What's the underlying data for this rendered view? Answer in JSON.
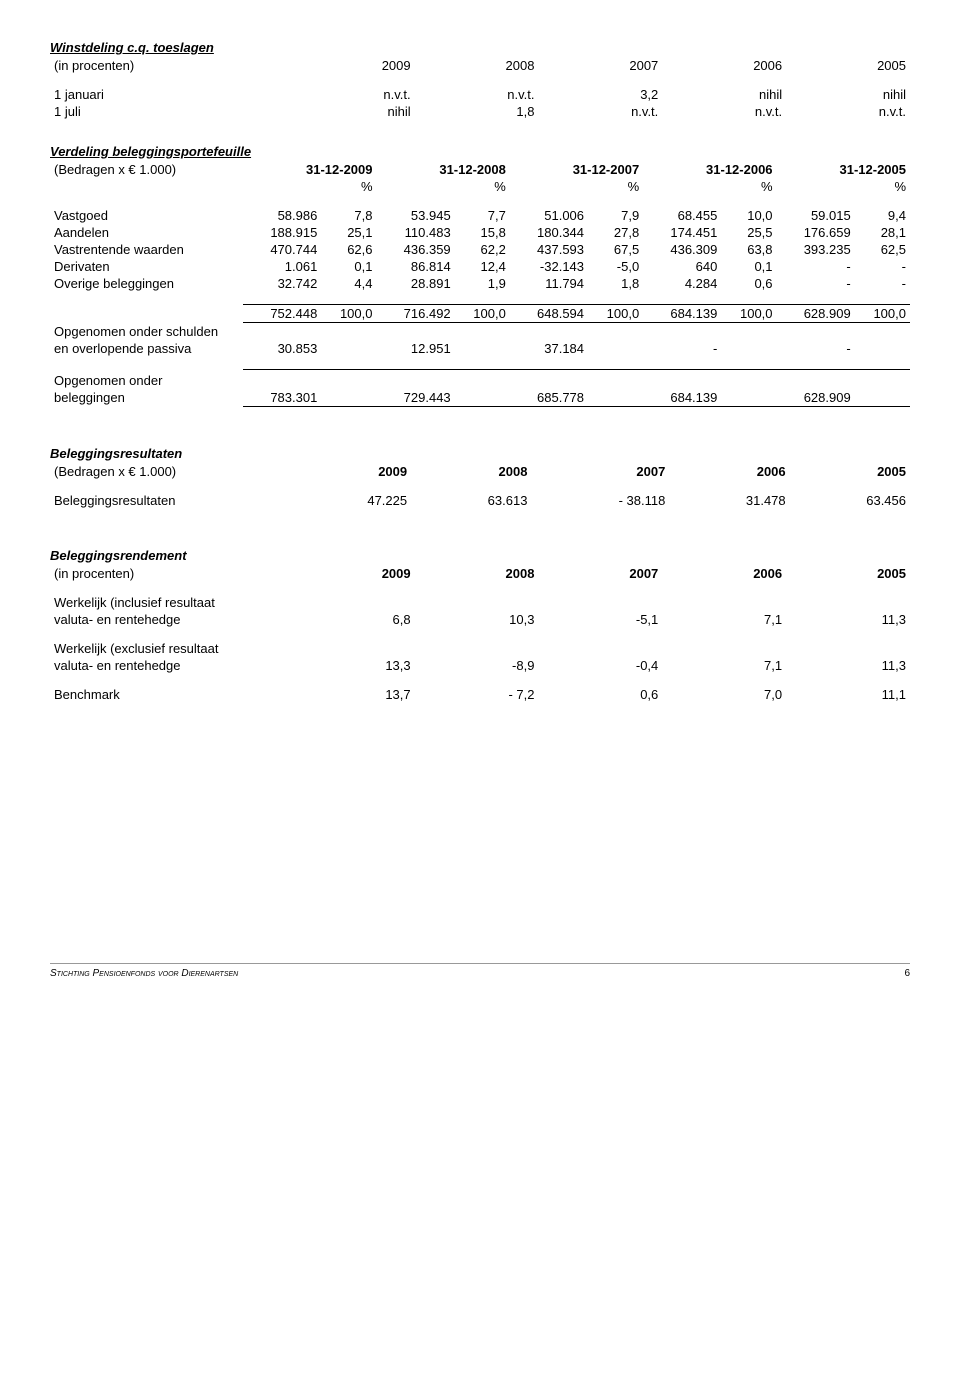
{
  "winstdeling": {
    "title": "Winstdeling c.q. toeslagen",
    "in_procenten": "(in procenten)",
    "years": [
      "2009",
      "2008",
      "2007",
      "2006",
      "2005"
    ],
    "rows": [
      {
        "label": "1 januari",
        "vals": [
          "n.v.t.",
          "n.v.t.",
          "3,2",
          "nihil",
          "nihil"
        ]
      },
      {
        "label": "1 juli",
        "vals": [
          "nihil",
          "1,8",
          "n.v.t.",
          "n.v.t.",
          "n.v.t."
        ]
      }
    ]
  },
  "verdeling": {
    "title": "Verdeling beleggingsportefeuille",
    "bedrag_label": "(Bedragen x € 1.000)",
    "dates": [
      "31-12-2009",
      "31-12-2008",
      "31-12-2007",
      "31-12-2006",
      "31-12-2005"
    ],
    "pct": "%",
    "rows": [
      {
        "label": "Vastgoed",
        "v": [
          "58.986",
          "7,8",
          "53.945",
          "7,7",
          "51.006",
          "7,9",
          "68.455",
          "10,0",
          "59.015",
          "9,4"
        ]
      },
      {
        "label": "Aandelen",
        "v": [
          "188.915",
          "25,1",
          "110.483",
          "15,8",
          "180.344",
          "27,8",
          "174.451",
          "25,5",
          "176.659",
          "28,1"
        ]
      },
      {
        "label": "Vastrentende waarden",
        "v": [
          "470.744",
          "62,6",
          "436.359",
          "62,2",
          "437.593",
          "67,5",
          "436.309",
          "63,8",
          "393.235",
          "62,5"
        ]
      },
      {
        "label": "Derivaten",
        "v": [
          "1.061",
          "0,1",
          "86.814",
          "12,4",
          "-32.143",
          "-5,0",
          "640",
          "0,1",
          "-",
          "-"
        ]
      },
      {
        "label": "Overige beleggingen",
        "v": [
          "32.742",
          "4,4",
          "28.891",
          "1,9",
          "11.794",
          "1,8",
          "4.284",
          "0,6",
          "-",
          "-"
        ]
      }
    ],
    "subtotal": [
      "752.448",
      "100,0",
      "716.492",
      "100,0",
      "648.594",
      "100,0",
      "684.139",
      "100,0",
      "628.909",
      "100,0"
    ],
    "opg_label1": "Opgenomen onder schulden",
    "opg_label2": "en overlopende passiva",
    "opg_vals": [
      "30.853",
      "12.951",
      "37.184",
      "-",
      "-"
    ],
    "opg_onder_label1": "Opgenomen onder",
    "opg_onder_label2": "beleggingen",
    "opg_onder_vals": [
      "783.301",
      "729.443",
      "685.778",
      "684.139",
      "628.909"
    ]
  },
  "resultaten": {
    "title": "Beleggingsresultaten",
    "bedrag_label": "(Bedragen x € 1.000)",
    "years": [
      "2009",
      "2008",
      "2007",
      "2006",
      "2005"
    ],
    "row_label": "Beleggingsresultaten",
    "vals": [
      "47.225",
      "63.613",
      "- 38.118",
      "31.478",
      "63.456"
    ]
  },
  "rendement": {
    "title": "Beleggingsrendement",
    "in_procenten": "(in procenten)",
    "years": [
      "2009",
      "2008",
      "2007",
      "2006",
      "2005"
    ],
    "rows": [
      {
        "label1": "Werkelijk (inclusief resultaat",
        "label2": "valuta- en rentehedge",
        "v": [
          "6,8",
          "10,3",
          "-5,1",
          "7,1",
          "11,3"
        ]
      },
      {
        "label1": "Werkelijk (exclusief resultaat",
        "label2": "valuta- en rentehedge",
        "v": [
          "13,3",
          "-8,9",
          "-0,4",
          "7,1",
          "11,3"
        ]
      },
      {
        "label1": "Benchmark",
        "label2": "",
        "v": [
          "13,7",
          "- 7,2",
          "0,6",
          "7,0",
          "11,1"
        ]
      }
    ]
  },
  "footer": {
    "org": "Stichting Pensioenfonds voor Dierenartsen",
    "page": "6"
  }
}
